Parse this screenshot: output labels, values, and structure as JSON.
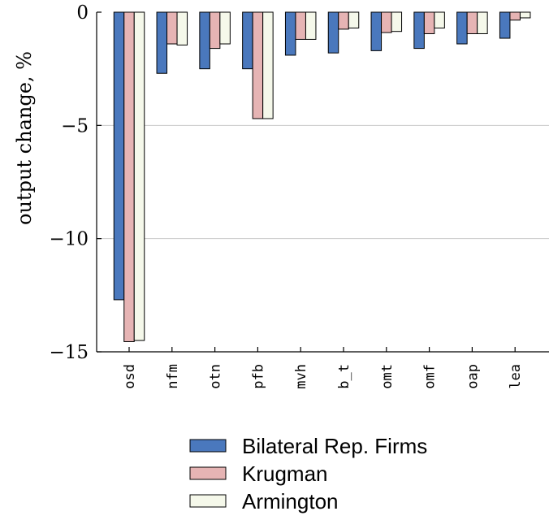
{
  "chart_data": {
    "type": "bar",
    "title": "",
    "xlabel": "",
    "ylabel": "output change, %",
    "ylim": [
      -15,
      0
    ],
    "yticks": [
      0,
      -5,
      -10,
      -15
    ],
    "ytick_labels": [
      "0",
      "−5",
      "−10",
      "−15"
    ],
    "grid": "horizontal",
    "legend_position": "bottom",
    "categories": [
      "osd",
      "nfm",
      "otn",
      "pfb",
      "mvh",
      "b_t",
      "omt",
      "omf",
      "oap",
      "lea"
    ],
    "series": [
      {
        "name": "Bilateral Rep. Firms",
        "color": "#4a78bd",
        "values": [
          -12.7,
          -2.7,
          -2.5,
          -2.5,
          -1.9,
          -1.8,
          -1.7,
          -1.6,
          -1.4,
          -1.15
        ]
      },
      {
        "name": "Krugman",
        "color": "#e6b4b4",
        "values": [
          -14.55,
          -1.4,
          -1.6,
          -4.7,
          -1.2,
          -0.75,
          -0.9,
          -0.95,
          -0.95,
          -0.35
        ]
      },
      {
        "name": "Armington",
        "color": "#f5f8ea",
        "values": [
          -14.5,
          -1.45,
          -1.4,
          -4.7,
          -1.2,
          -0.7,
          -0.85,
          -0.7,
          -0.95,
          -0.25
        ]
      }
    ]
  }
}
